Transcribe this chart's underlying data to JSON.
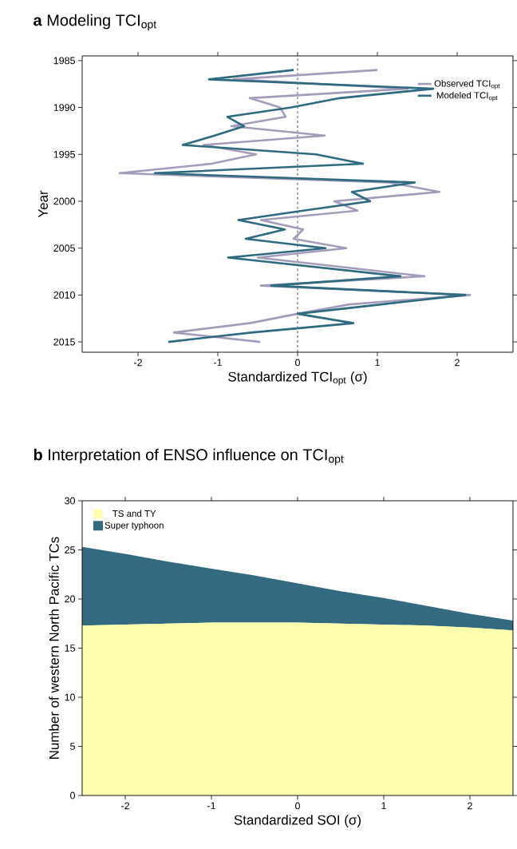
{
  "chart_data": [
    {
      "type": "line",
      "title": "**a** Modeling TCI$_{opt}$",
      "xlabel": "Standardized TCI$_{opt}$ (σ)",
      "ylabel": "Year",
      "xlim": [
        -2.7,
        2.7
      ],
      "xticks": [
        -2,
        -1,
        0,
        1,
        2
      ],
      "ylim": [
        2016.1,
        1984.5
      ],
      "yticks": [
        1985,
        1990,
        1995,
        2000,
        2005,
        2010,
        2015
      ],
      "legend": "top right",
      "line_style": "solid",
      "ref_lines": [
        {
          "axis": "x",
          "value": 0,
          "line_style": "dashed",
          "color": "#000000"
        }
      ],
      "series": [
        {
          "name": "Observed TCI$_{opt}$",
          "color": "#a59cbb",
          "x": [
            1.0,
            -0.8,
            1.38,
            -0.6,
            -0.22,
            -0.15,
            -0.83,
            0.34,
            -1.18,
            -0.52,
            -1.08,
            -2.23,
            1.15,
            1.78,
            0.46,
            0.75,
            -0.46,
            0.07,
            -0.05,
            0.61,
            -0.5,
            0.55,
            1.59,
            -0.46,
            2.16,
            0.65,
            0.0,
            -0.6,
            -1.55,
            -0.47
          ],
          "values": [
            1986,
            1987,
            1988,
            1989,
            1990,
            1991,
            1992,
            1993,
            1994,
            1995,
            1996,
            1997,
            1998,
            1999,
            2000,
            2001,
            2002,
            2003,
            2004,
            2005,
            2006,
            2007,
            2008,
            2009,
            2010,
            2011,
            2012,
            2013,
            2014,
            2015
          ]
        },
        {
          "name": "Modeled TCI$_{opt}$",
          "color": "#2e6a80",
          "x": [
            -0.05,
            -1.11,
            1.7,
            0.53,
            -0.08,
            -0.88,
            -0.67,
            -1.04,
            -1.44,
            0.23,
            0.82,
            -1.79,
            1.47,
            0.68,
            0.91,
            0.07,
            -0.74,
            -0.16,
            -0.65,
            0.35,
            -0.87,
            0.21,
            1.29,
            -0.33,
            2.1,
            1.05,
            0.0,
            0.7,
            -0.58,
            -1.62
          ],
          "values": [
            1986,
            1987,
            1988,
            1989,
            1990,
            1991,
            1992,
            1993,
            1994,
            1995,
            1996,
            1997,
            1998,
            1999,
            2000,
            2001,
            2002,
            2003,
            2004,
            2005,
            2006,
            2007,
            2008,
            2009,
            2010,
            2011,
            2012,
            2013,
            2014,
            2015
          ]
        }
      ]
    },
    {
      "type": "area",
      "title": "**b** Interpretation of ENSO influence on TCI$_{opt}$",
      "xlabel": "Standardized SOI (σ)",
      "ylabel": "Number of western North Pacific TCs",
      "xlim": [
        -2.5,
        2.5
      ],
      "xticks": [
        -2,
        -1,
        0,
        1,
        2
      ],
      "ylim": [
        0,
        30
      ],
      "yticks": [
        0,
        5,
        10,
        15,
        20,
        25,
        30
      ],
      "stacked": true,
      "legend": "top left",
      "x": [
        -2.5,
        -2,
        -1.5,
        -1,
        -0.5,
        0,
        0.5,
        1,
        1.5,
        2,
        2.5
      ],
      "series": [
        {
          "name": "TS and TY",
          "color": "#fdfdae",
          "values": [
            17.3,
            17.4,
            17.5,
            17.6,
            17.6,
            17.6,
            17.5,
            17.4,
            17.3,
            17.1,
            16.8
          ]
        },
        {
          "name": "Super typhoon",
          "color": "#336a80",
          "values": [
            8.0,
            7.2,
            6.3,
            5.5,
            4.8,
            4.0,
            3.3,
            2.7,
            2.0,
            1.4,
            1.0
          ]
        }
      ]
    }
  ]
}
